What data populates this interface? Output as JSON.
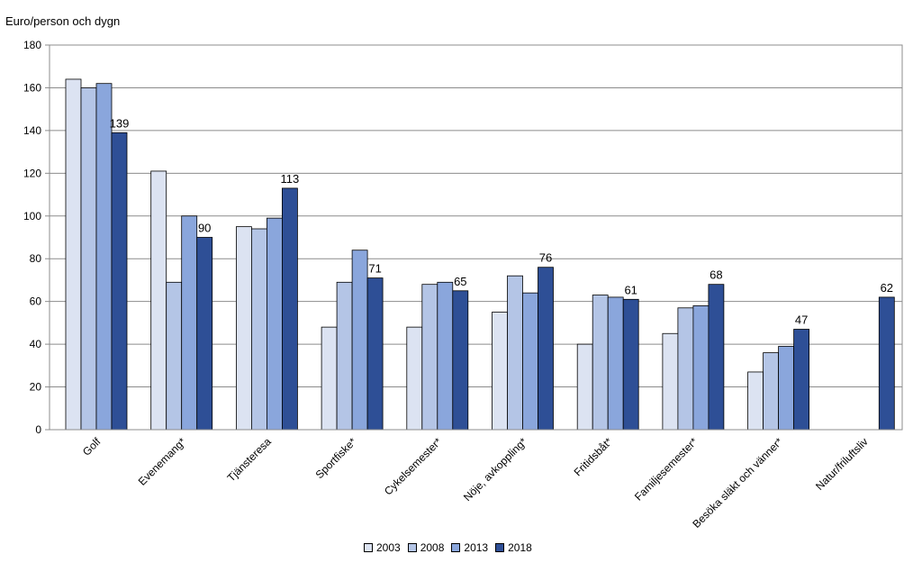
{
  "chart_data": {
    "type": "bar",
    "ylabel": "Euro/person och dygn",
    "ylim": [
      0,
      180
    ],
    "yticks": [
      0,
      20,
      40,
      60,
      80,
      100,
      120,
      140,
      160,
      180
    ],
    "grid": true,
    "legend_position": "bottom",
    "categories": [
      "Golf",
      "Evenemang*",
      "Tjänsteresa",
      "Sportfiske*",
      "Cykelsemester*",
      "Nöje, avkoppling*",
      "Fritidsbåt*",
      "Familjesemester*",
      "Besöka släkt och vänner*",
      "Natur/friluftsliv"
    ],
    "series": [
      {
        "name": "2003",
        "color": "#dce3f2",
        "values": [
          164,
          121,
          95,
          48,
          48,
          55,
          40,
          45,
          27,
          null
        ]
      },
      {
        "name": "2008",
        "color": "#b4c5e6",
        "values": [
          160,
          69,
          94,
          69,
          68,
          72,
          63,
          57,
          36,
          null
        ]
      },
      {
        "name": "2013",
        "color": "#8aa6dc",
        "values": [
          162,
          100,
          99,
          84,
          69,
          64,
          62,
          58,
          39,
          null
        ]
      },
      {
        "name": "2018",
        "color": "#2e4f96",
        "values": [
          139,
          90,
          113,
          71,
          65,
          76,
          61,
          68,
          47,
          62
        ]
      }
    ],
    "data_labels": [
      "139",
      "90",
      "113",
      "71",
      "65",
      "76",
      "61",
      "68",
      "47",
      "62"
    ]
  }
}
